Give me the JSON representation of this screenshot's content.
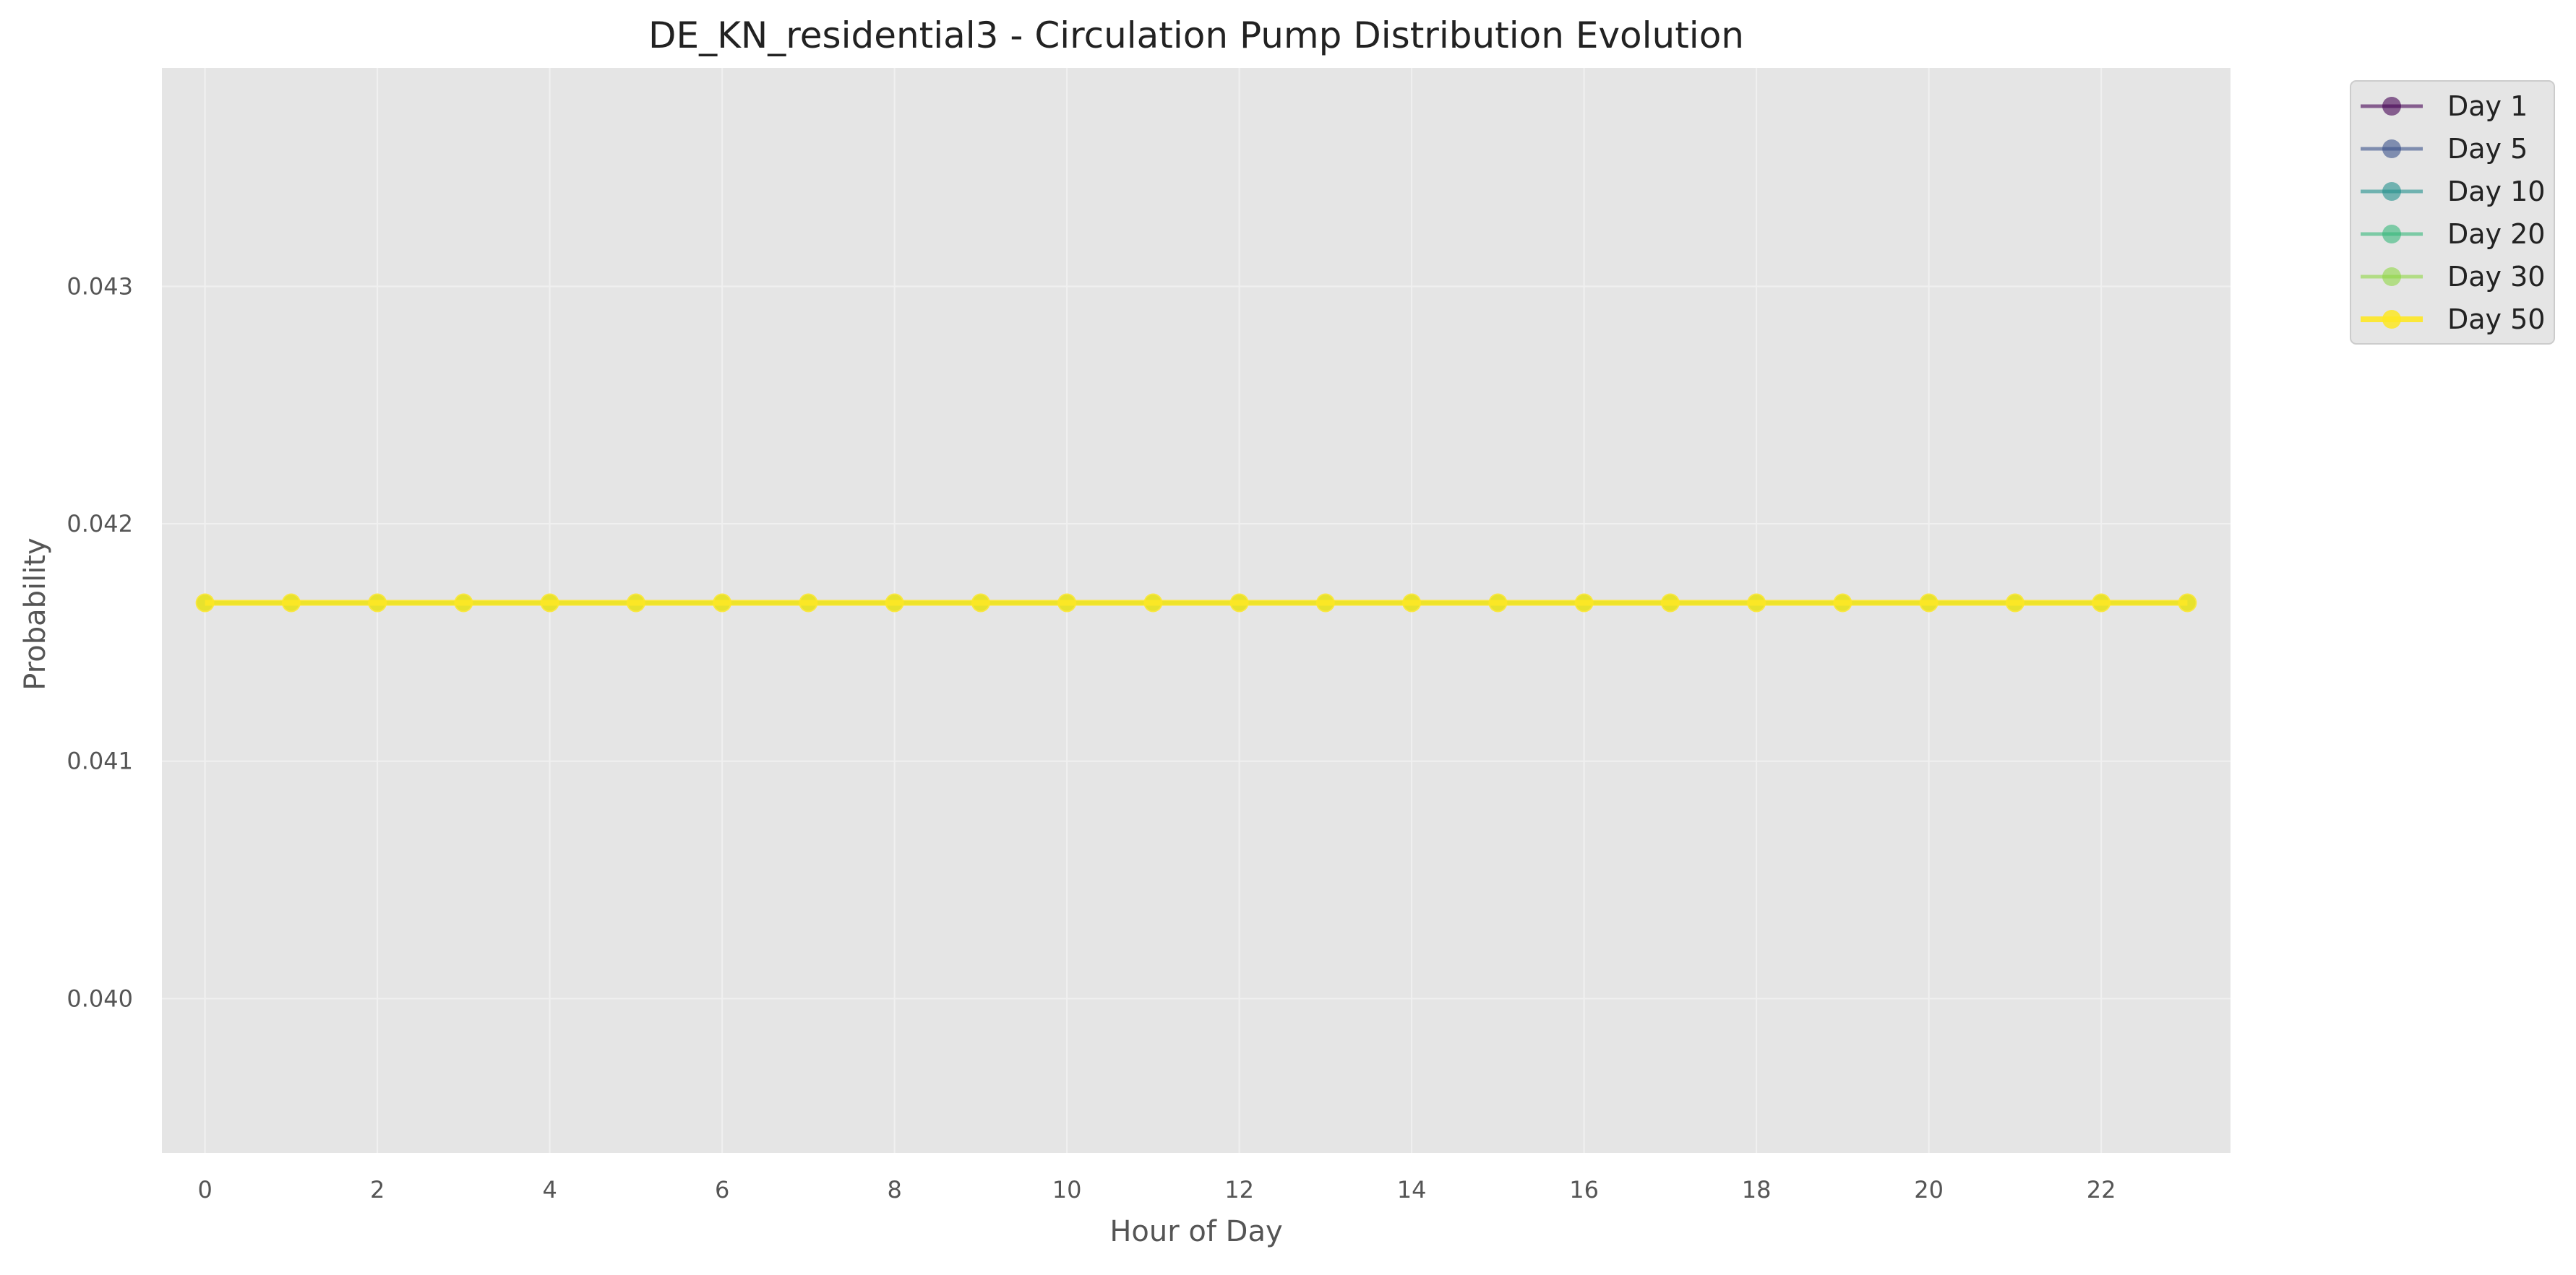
{
  "chart_data": {
    "type": "line",
    "title": "DE_KN_residential3 - Circulation Pump Distribution Evolution",
    "xlabel": "Hour of Day",
    "ylabel": "Probability",
    "xlim": [
      -0.5,
      23.5
    ],
    "ylim": [
      0.03935,
      0.04392
    ],
    "x_ticks": [
      0,
      2,
      4,
      6,
      8,
      10,
      12,
      14,
      16,
      18,
      20,
      22
    ],
    "x_tick_labels": [
      "0",
      "2",
      "4",
      "6",
      "8",
      "10",
      "12",
      "14",
      "16",
      "18",
      "20",
      "22"
    ],
    "y_ticks": [
      0.04,
      0.041,
      0.042,
      0.043
    ],
    "y_tick_labels": [
      "0.040",
      "0.041",
      "0.042",
      "0.043"
    ],
    "grid": true,
    "legend_position": "outside-top-right",
    "background_color": "#e5e5e5",
    "x": [
      0,
      1,
      2,
      3,
      4,
      5,
      6,
      7,
      8,
      9,
      10,
      11,
      12,
      13,
      14,
      15,
      16,
      17,
      18,
      19,
      20,
      21,
      22,
      23
    ],
    "series": [
      {
        "name": "Day 1",
        "color": "#440154",
        "emphasis": false,
        "values": [
          0.041667,
          0.041667,
          0.041667,
          0.041667,
          0.041667,
          0.041667,
          0.041667,
          0.041667,
          0.041667,
          0.041667,
          0.041667,
          0.041667,
          0.041667,
          0.041667,
          0.041667,
          0.041667,
          0.041667,
          0.041667,
          0.041667,
          0.041667,
          0.041667,
          0.041667,
          0.041667,
          0.041667
        ]
      },
      {
        "name": "Day 5",
        "color": "#3b528b",
        "emphasis": false,
        "values": [
          0.041667,
          0.041667,
          0.041667,
          0.041667,
          0.041667,
          0.041667,
          0.041667,
          0.041667,
          0.041667,
          0.041667,
          0.041667,
          0.041667,
          0.041667,
          0.041667,
          0.041667,
          0.041667,
          0.041667,
          0.041667,
          0.041667,
          0.041667,
          0.041667,
          0.041667,
          0.041667,
          0.041667
        ]
      },
      {
        "name": "Day 10",
        "color": "#21908c",
        "emphasis": false,
        "values": [
          0.041667,
          0.041667,
          0.041667,
          0.041667,
          0.041667,
          0.041667,
          0.041667,
          0.041667,
          0.041667,
          0.041667,
          0.041667,
          0.041667,
          0.041667,
          0.041667,
          0.041667,
          0.041667,
          0.041667,
          0.041667,
          0.041667,
          0.041667,
          0.041667,
          0.041667,
          0.041667,
          0.041667
        ]
      },
      {
        "name": "Day 20",
        "color": "#35b779",
        "emphasis": false,
        "values": [
          0.041667,
          0.041667,
          0.041667,
          0.041667,
          0.041667,
          0.041667,
          0.041667,
          0.041667,
          0.041667,
          0.041667,
          0.041667,
          0.041667,
          0.041667,
          0.041667,
          0.041667,
          0.041667,
          0.041667,
          0.041667,
          0.041667,
          0.041667,
          0.041667,
          0.041667,
          0.041667,
          0.041667
        ]
      },
      {
        "name": "Day 30",
        "color": "#8fd744",
        "emphasis": false,
        "values": [
          0.041667,
          0.041667,
          0.041667,
          0.041667,
          0.041667,
          0.041667,
          0.041667,
          0.041667,
          0.041667,
          0.041667,
          0.041667,
          0.041667,
          0.041667,
          0.041667,
          0.041667,
          0.041667,
          0.041667,
          0.041667,
          0.041667,
          0.041667,
          0.041667,
          0.041667,
          0.041667,
          0.041667
        ]
      },
      {
        "name": "Day 50",
        "color": "#fde725",
        "emphasis": true,
        "values": [
          0.041667,
          0.041667,
          0.041667,
          0.041667,
          0.041667,
          0.041667,
          0.041667,
          0.041667,
          0.041667,
          0.041667,
          0.041667,
          0.041667,
          0.041667,
          0.041667,
          0.041667,
          0.041667,
          0.041667,
          0.041667,
          0.041667,
          0.041667,
          0.041667,
          0.041667,
          0.041667,
          0.041667
        ]
      }
    ]
  }
}
